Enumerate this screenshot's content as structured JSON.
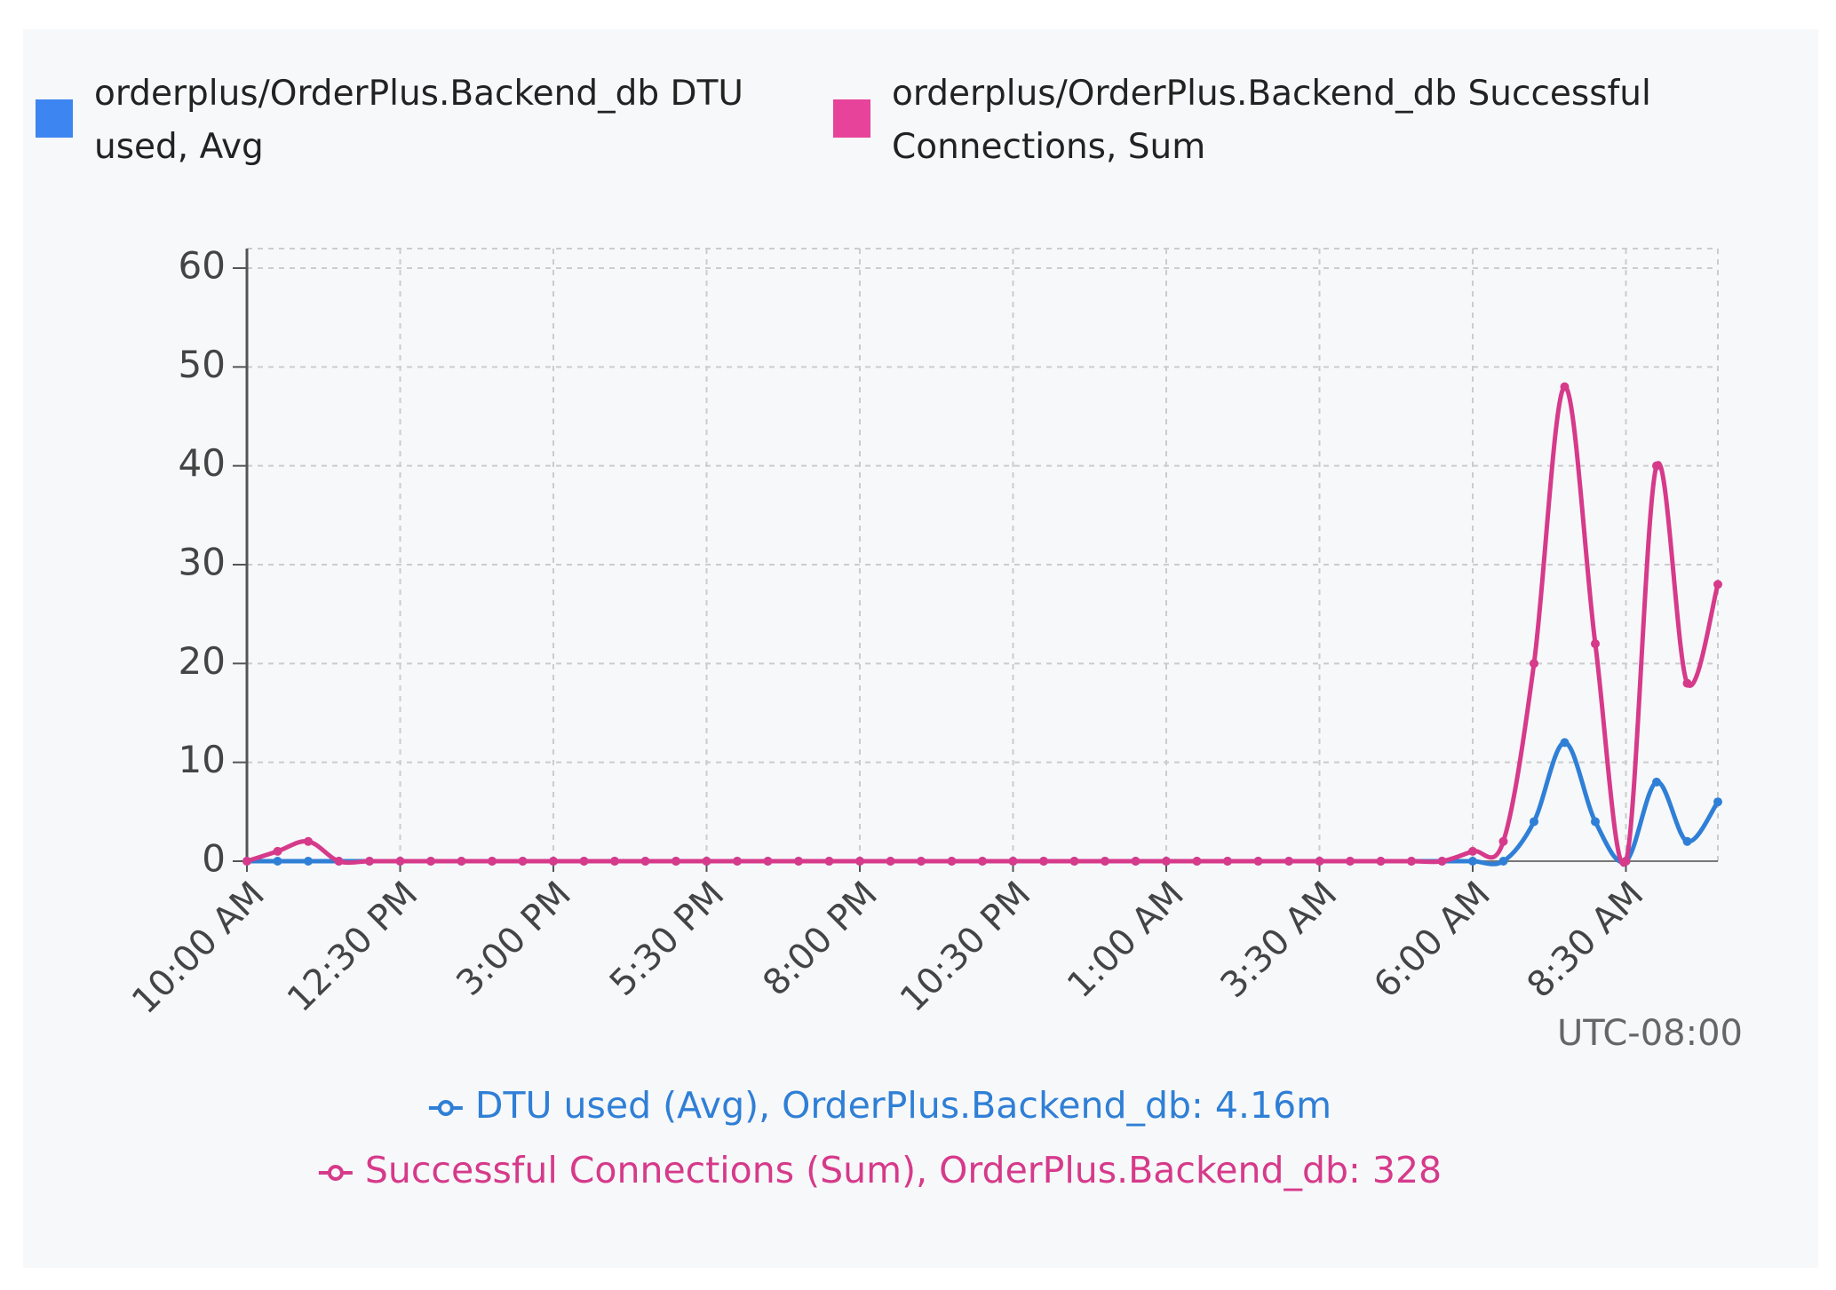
{
  "chart_data": {
    "type": "line",
    "categories": [
      "10:00 AM",
      null,
      null,
      null,
      null,
      "12:30 PM",
      null,
      null,
      null,
      null,
      "3:00 PM",
      null,
      null,
      null,
      null,
      "5:30 PM",
      null,
      null,
      null,
      null,
      "8:00 PM",
      null,
      null,
      null,
      null,
      "10:30 PM",
      null,
      null,
      null,
      null,
      "1:00 AM",
      null,
      null,
      null,
      null,
      "3:30 AM",
      null,
      null,
      null,
      null,
      "6:00 AM",
      null,
      null,
      null,
      null,
      "8:30 AM",
      null,
      null,
      null
    ],
    "series": [
      {
        "name": "orderplus/OrderPlus.Backend_db DTU used, Avg",
        "summary": "DTU used (Avg), OrderPlus.Backend_db: 4.16m",
        "color": "#2f7fd6",
        "legend_color": "#3d85f0",
        "values": [
          0,
          0,
          0,
          0,
          0,
          0,
          0,
          0,
          0,
          0,
          0,
          0,
          0,
          0,
          0,
          0,
          0,
          0,
          0,
          0,
          0,
          0,
          0,
          0,
          0,
          0,
          0,
          0,
          0,
          0,
          0,
          0,
          0,
          0,
          0,
          0,
          0,
          0,
          0,
          0,
          0,
          0,
          4,
          12,
          4,
          0,
          8,
          2,
          6
        ]
      },
      {
        "name": "orderplus/OrderPlus.Backend_db Successful Connections, Sum",
        "summary": "Successful Connections (Sum), OrderPlus.Backend_db: 328",
        "color": "#d63a8a",
        "legend_color": "#e8439a",
        "values": [
          0,
          1,
          2,
          0,
          0,
          0,
          0,
          0,
          0,
          0,
          0,
          0,
          0,
          0,
          0,
          0,
          0,
          0,
          0,
          0,
          0,
          0,
          0,
          0,
          0,
          0,
          0,
          0,
          0,
          0,
          0,
          0,
          0,
          0,
          0,
          0,
          0,
          0,
          0,
          0,
          1,
          2,
          20,
          48,
          22,
          0,
          40,
          18,
          28
        ]
      }
    ],
    "ylim": [
      0,
      60
    ],
    "yticks": [
      0,
      10,
      20,
      30,
      40,
      50,
      60
    ],
    "grid": true,
    "timezone_label": "UTC-08:00"
  }
}
